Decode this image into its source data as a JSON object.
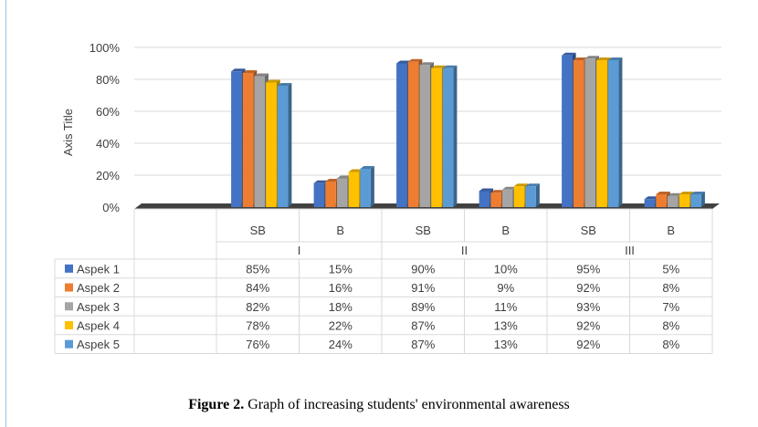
{
  "chart_data": {
    "type": "bar",
    "ylabel": "Axis Title",
    "y_ticks": [
      "0%",
      "20%",
      "40%",
      "60%",
      "80%",
      "100%"
    ],
    "ylim": [
      0,
      100
    ],
    "categories": [
      {
        "group": "I",
        "label": "SB"
      },
      {
        "group": "I",
        "label": "B"
      },
      {
        "group": "II",
        "label": "SB"
      },
      {
        "group": "II",
        "label": "B"
      },
      {
        "group": "III",
        "label": "SB"
      },
      {
        "group": "III",
        "label": "B"
      }
    ],
    "groups": [
      "I",
      "II",
      "III"
    ],
    "series": [
      {
        "name": "Aspek 1",
        "color": "#4472c4",
        "values": [
          85,
          15,
          90,
          10,
          95,
          5
        ],
        "labels": [
          "85%",
          "15%",
          "90%",
          "10%",
          "95%",
          "5%"
        ]
      },
      {
        "name": "Aspek 2",
        "color": "#ed7d31",
        "values": [
          84,
          16,
          91,
          9,
          92,
          8
        ],
        "labels": [
          "84%",
          "16%",
          "91%",
          "9%",
          "92%",
          "8%"
        ]
      },
      {
        "name": "Aspek 3",
        "color": "#a5a5a5",
        "values": [
          82,
          18,
          89,
          11,
          93,
          7
        ],
        "labels": [
          "82%",
          "18%",
          "89%",
          "11%",
          "93%",
          "7%"
        ]
      },
      {
        "name": "Aspek 4",
        "color": "#ffc000",
        "values": [
          78,
          22,
          87,
          13,
          92,
          8
        ],
        "labels": [
          "78%",
          "22%",
          "87%",
          "13%",
          "92%",
          "8%"
        ]
      },
      {
        "name": "Aspek 5",
        "color": "#5b9bd5",
        "values": [
          76,
          24,
          87,
          13,
          92,
          8
        ],
        "labels": [
          "76%",
          "24%",
          "87%",
          "13%",
          "92%",
          "8%"
        ]
      }
    ],
    "data_table": true,
    "grid": true,
    "style": "3d-clustered-column"
  },
  "caption": {
    "label": "Figure  2.",
    "text": " Graph of increasing students' environmental awareness"
  }
}
